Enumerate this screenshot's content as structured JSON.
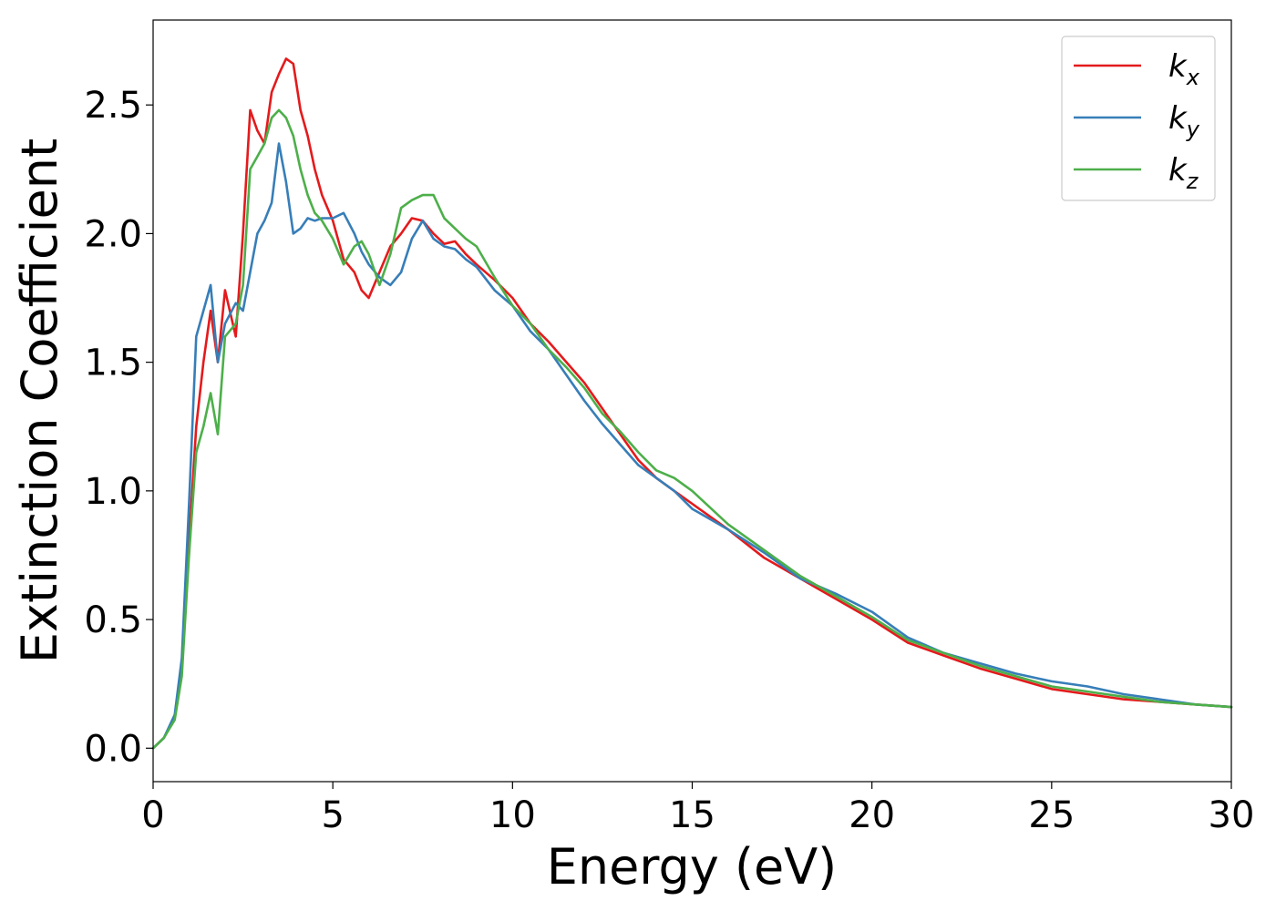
{
  "chart_data": {
    "type": "line",
    "title": "",
    "xlabel": "Energy (eV)",
    "ylabel": "Extinction Coefficient",
    "xlim": [
      0,
      30
    ],
    "ylim": [
      -0.13,
      2.83
    ],
    "xticks": [
      0,
      5,
      10,
      15,
      20,
      25,
      30
    ],
    "yticks": [
      0.0,
      0.5,
      1.0,
      1.5,
      2.0,
      2.5
    ],
    "xtick_labels": [
      "0",
      "5",
      "10",
      "15",
      "20",
      "25",
      "30"
    ],
    "ytick_labels": [
      "0.0",
      "0.5",
      "1.0",
      "1.5",
      "2.0",
      "2.5"
    ],
    "grid": false,
    "legend_position": "top-right",
    "series": [
      {
        "name": "k_x",
        "label_main": "k",
        "label_sub": "x",
        "color": "#e41a1c",
        "x": [
          0,
          0.3,
          0.6,
          0.8,
          1.0,
          1.2,
          1.4,
          1.6,
          1.8,
          2.0,
          2.3,
          2.5,
          2.7,
          2.9,
          3.1,
          3.3,
          3.5,
          3.7,
          3.9,
          4.1,
          4.3,
          4.5,
          4.7,
          5.0,
          5.3,
          5.6,
          5.8,
          6.0,
          6.3,
          6.6,
          6.9,
          7.2,
          7.5,
          7.8,
          8.1,
          8.4,
          8.7,
          9.0,
          9.5,
          10.0,
          10.5,
          11.0,
          11.5,
          12.0,
          12.5,
          13.0,
          13.5,
          14.0,
          14.5,
          15.0,
          16.0,
          17.0,
          18.0,
          19.0,
          20.0,
          21.0,
          22.0,
          23.0,
          24.0,
          25.0,
          26.0,
          27.0,
          28.0,
          29.0,
          30.0
        ],
        "y": [
          0.0,
          0.04,
          0.12,
          0.3,
          0.8,
          1.25,
          1.5,
          1.7,
          1.5,
          1.78,
          1.6,
          2.0,
          2.48,
          2.4,
          2.35,
          2.55,
          2.62,
          2.68,
          2.66,
          2.48,
          2.38,
          2.25,
          2.15,
          2.05,
          1.9,
          1.85,
          1.78,
          1.75,
          1.85,
          1.95,
          2.0,
          2.06,
          2.05,
          2.0,
          1.96,
          1.97,
          1.92,
          1.88,
          1.82,
          1.75,
          1.65,
          1.58,
          1.5,
          1.42,
          1.32,
          1.22,
          1.12,
          1.05,
          1.0,
          0.95,
          0.85,
          0.74,
          0.66,
          0.58,
          0.5,
          0.41,
          0.36,
          0.31,
          0.27,
          0.23,
          0.21,
          0.19,
          0.18,
          0.17,
          0.16
        ]
      },
      {
        "name": "k_y",
        "label_main": "k",
        "label_sub": "y",
        "color": "#377eb8",
        "x": [
          0,
          0.3,
          0.6,
          0.8,
          1.0,
          1.2,
          1.4,
          1.6,
          1.8,
          2.0,
          2.3,
          2.5,
          2.7,
          2.9,
          3.1,
          3.3,
          3.5,
          3.7,
          3.9,
          4.1,
          4.3,
          4.5,
          4.7,
          5.0,
          5.3,
          5.6,
          5.8,
          6.0,
          6.3,
          6.6,
          6.9,
          7.2,
          7.5,
          7.8,
          8.1,
          8.4,
          8.7,
          9.0,
          9.5,
          10.0,
          10.5,
          11.0,
          11.5,
          12.0,
          12.5,
          13.0,
          13.5,
          14.0,
          14.5,
          15.0,
          16.0,
          17.0,
          18.0,
          19.0,
          20.0,
          21.0,
          22.0,
          23.0,
          24.0,
          25.0,
          26.0,
          27.0,
          28.0,
          29.0,
          30.0
        ],
        "y": [
          0.0,
          0.04,
          0.13,
          0.35,
          0.95,
          1.6,
          1.7,
          1.8,
          1.5,
          1.65,
          1.73,
          1.7,
          1.85,
          2.0,
          2.05,
          2.12,
          2.35,
          2.2,
          2.0,
          2.02,
          2.06,
          2.05,
          2.06,
          2.06,
          2.08,
          2.0,
          1.93,
          1.88,
          1.83,
          1.8,
          1.85,
          1.98,
          2.05,
          1.98,
          1.95,
          1.94,
          1.9,
          1.87,
          1.78,
          1.72,
          1.62,
          1.55,
          1.45,
          1.35,
          1.26,
          1.18,
          1.1,
          1.05,
          1.0,
          0.93,
          0.85,
          0.76,
          0.66,
          0.6,
          0.53,
          0.43,
          0.37,
          0.33,
          0.29,
          0.26,
          0.24,
          0.21,
          0.19,
          0.17,
          0.16
        ]
      },
      {
        "name": "k_z",
        "label_main": "k",
        "label_sub": "z",
        "color": "#4daf4a",
        "x": [
          0,
          0.3,
          0.6,
          0.8,
          1.0,
          1.2,
          1.4,
          1.6,
          1.8,
          2.0,
          2.3,
          2.5,
          2.7,
          2.9,
          3.1,
          3.3,
          3.5,
          3.7,
          3.9,
          4.1,
          4.3,
          4.5,
          4.7,
          5.0,
          5.3,
          5.6,
          5.8,
          6.0,
          6.3,
          6.6,
          6.9,
          7.2,
          7.5,
          7.8,
          8.1,
          8.4,
          8.7,
          9.0,
          9.5,
          10.0,
          10.5,
          11.0,
          11.5,
          12.0,
          12.5,
          13.0,
          13.5,
          14.0,
          14.5,
          15.0,
          16.0,
          17.0,
          18.0,
          19.0,
          20.0,
          21.0,
          22.0,
          23.0,
          24.0,
          25.0,
          26.0,
          27.0,
          28.0,
          29.0,
          30.0
        ],
        "y": [
          0.0,
          0.04,
          0.11,
          0.28,
          0.75,
          1.15,
          1.25,
          1.38,
          1.22,
          1.6,
          1.65,
          1.8,
          2.25,
          2.3,
          2.35,
          2.45,
          2.48,
          2.45,
          2.38,
          2.25,
          2.15,
          2.08,
          2.05,
          1.98,
          1.88,
          1.95,
          1.97,
          1.92,
          1.8,
          1.92,
          2.1,
          2.13,
          2.15,
          2.15,
          2.06,
          2.02,
          1.98,
          1.95,
          1.83,
          1.72,
          1.65,
          1.55,
          1.48,
          1.4,
          1.3,
          1.23,
          1.15,
          1.08,
          1.05,
          1.0,
          0.87,
          0.77,
          0.67,
          0.59,
          0.51,
          0.42,
          0.37,
          0.32,
          0.28,
          0.24,
          0.22,
          0.2,
          0.18,
          0.17,
          0.16
        ]
      }
    ]
  }
}
